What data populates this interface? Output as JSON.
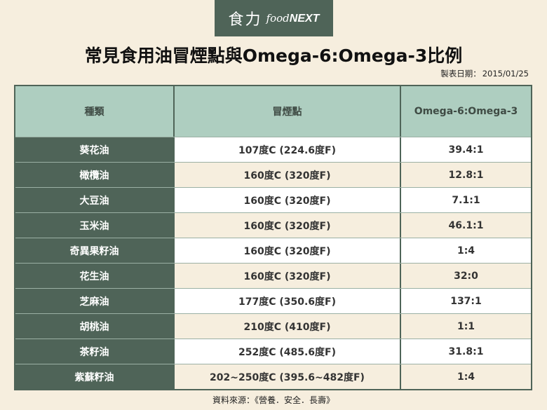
{
  "logo": {
    "zh": "食力",
    "en_food": "food",
    "en_next": "NEXT"
  },
  "title": "常見食用油冒煙點與Omega-6:Omega-3比例",
  "date": {
    "label": "製表日期：",
    "value": "2015/01/25"
  },
  "table": {
    "headers": [
      "種類",
      "冒煙點",
      "Omega-6:Omega-3"
    ],
    "rows": [
      {
        "oil": "葵花油",
        "smoke_point": "107度C (224.6度F)",
        "ratio": "39.4:1"
      },
      {
        "oil": "橄欖油",
        "smoke_point": "160度C (320度F)",
        "ratio": "12.8:1"
      },
      {
        "oil": "大豆油",
        "smoke_point": "160度C (320度F)",
        "ratio": "7.1:1"
      },
      {
        "oil": "玉米油",
        "smoke_point": "160度C (320度F)",
        "ratio": "46.1:1"
      },
      {
        "oil": "奇異果籽油",
        "smoke_point": "160度C (320度F)",
        "ratio": "1:4"
      },
      {
        "oil": "花生油",
        "smoke_point": "160度C (320度F)",
        "ratio": "32:0"
      },
      {
        "oil": "芝麻油",
        "smoke_point": "177度C (350.6度F)",
        "ratio": "137:1"
      },
      {
        "oil": "胡桃油",
        "smoke_point": "210度C (410度F)",
        "ratio": "1:1"
      },
      {
        "oil": "茶籽油",
        "smoke_point": "252度C (485.6度F)",
        "ratio": "31.8:1"
      },
      {
        "oil": "紫蘇籽油",
        "smoke_point": "202~250度C (395.6~482度F)",
        "ratio": "1:4"
      }
    ]
  },
  "source": "資料來源：《營養．安全．長壽》",
  "colors": {
    "accent": "#4f6458",
    "header": "#aecec0",
    "background": "#f6eede"
  }
}
